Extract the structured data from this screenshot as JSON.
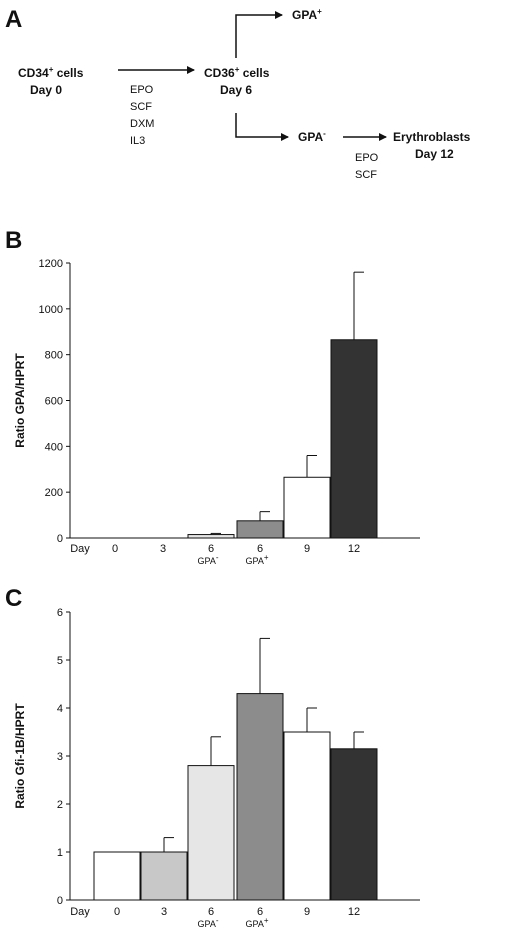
{
  "panels": {
    "a": "A",
    "b": "B",
    "c": "C"
  },
  "flow": {
    "cd34_line1": "CD34",
    "cd34_sup": "+",
    "cd34_line2": " cells",
    "cd34_day": "Day 0",
    "factors1": [
      "EPO",
      "SCF",
      "DXM",
      "IL3"
    ],
    "cd36_line1": "CD36",
    "cd36_sup": "+",
    "cd36_line2": " cells",
    "cd36_day": "Day 6",
    "gpa_pos": "GPA",
    "gpa_pos_sup": "+",
    "gpa_neg": "GPA",
    "gpa_neg_sup": "-",
    "ery_line1": "Erythroblasts",
    "ery_line2": "Day 12",
    "factors2": [
      "EPO",
      "SCF"
    ]
  },
  "chart_data": [
    {
      "type": "bar",
      "title": "",
      "xlabel": "Day",
      "ylabel": "Ratio GPA/HPRT",
      "ylim": [
        0,
        1200
      ],
      "yticks": [
        "0",
        "200",
        "400",
        "600",
        "800",
        "1000",
        "1200"
      ],
      "categories": [
        "0",
        "3",
        "6",
        "6",
        "9",
        "12"
      ],
      "sublabels": [
        "",
        "",
        "GPA-",
        "GPA+",
        "",
        ""
      ],
      "values": [
        0,
        0,
        15,
        75,
        265,
        865
      ],
      "errors": [
        0,
        0,
        5,
        40,
        95,
        295
      ],
      "colors": [
        "#ffffff",
        "#c8c8c8",
        "#e6e6e6",
        "#8c8c8c",
        "#ffffff",
        "#333333"
      ],
      "grid": false
    },
    {
      "type": "bar",
      "title": "",
      "xlabel": "Day",
      "ylabel": "Ratio Gfi-1B/HPRT",
      "ylim": [
        0,
        6
      ],
      "yticks": [
        "0",
        "1",
        "2",
        "3",
        "4",
        "5",
        "6"
      ],
      "categories": [
        "0",
        "3",
        "6",
        "6",
        "9",
        "12"
      ],
      "sublabels": [
        "",
        "",
        "GPA-",
        "GPA+",
        "",
        ""
      ],
      "values": [
        1.0,
        1.0,
        2.8,
        4.3,
        3.5,
        3.15
      ],
      "errors": [
        0,
        0.3,
        0.6,
        1.15,
        0.5,
        0.35
      ],
      "colors": [
        "#ffffff",
        "#c8c8c8",
        "#e6e6e6",
        "#8c8c8c",
        "#ffffff",
        "#333333"
      ],
      "grid": false
    }
  ]
}
